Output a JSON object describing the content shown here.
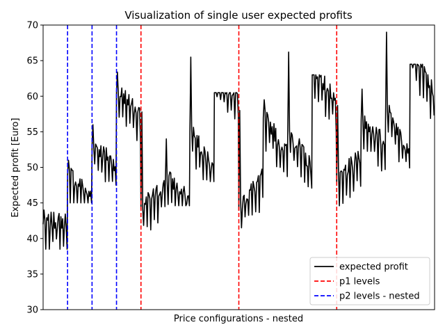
{
  "chart_data": {
    "type": "line",
    "title": "Visualization of single user expected profits",
    "xlabel": "Price configurations - nested",
    "ylabel": "Expected profit [Euro]",
    "ylim": [
      30,
      70
    ],
    "yticks": [
      30,
      35,
      40,
      45,
      50,
      55,
      60,
      65,
      70
    ],
    "xticks_shown": false,
    "grid": false,
    "legend_position": "bottom-right",
    "legend": [
      {
        "label": "expected profit",
        "color": "#000000",
        "style": "solid"
      },
      {
        "label": "p1 levels",
        "color": "#ff0000",
        "style": "dashed"
      },
      {
        "label": "p2 levels - nested",
        "color": "#0000ff",
        "style": "dashed"
      }
    ],
    "segment_count": 16,
    "p1_level_indices": [
      4,
      8,
      12
    ],
    "p2_level_indices": [
      1,
      2,
      3
    ],
    "series": [
      {
        "name": "expected profit",
        "segment_start_values": [
          42.5,
          49.5,
          53.5,
          61.0,
          44.5,
          49.0,
          55.5,
          63.0,
          44.5,
          57.5,
          55.5,
          64.5,
          48.5,
          57.0,
          58.5,
          67.5
        ],
        "segment_trends": [
          0.0,
          -3.5,
          -3.0,
          -3.0,
          3.0,
          -3.5,
          -5.5,
          -3.0,
          4.5,
          -5.5,
          -5.5,
          -5.0,
          3.0,
          -3.5,
          -6.0,
          -7.0
        ],
        "segment_min_values": [
          38.5,
          45.0,
          47.5,
          46.8,
          40.8,
          44.6,
          48.0,
          48.6,
          41.5,
          46.0,
          46.0,
          49.6,
          44.6,
          49.5,
          49.6,
          53.5
        ],
        "segment_max_values": [
          44.0,
          51.0,
          56.0,
          63.4,
          57.8,
          54.0,
          65.5,
          60.5,
          58.0,
          59.5,
          66.2,
          63.0,
          58.7,
          61.0,
          69.0,
          64.5
        ]
      }
    ]
  }
}
